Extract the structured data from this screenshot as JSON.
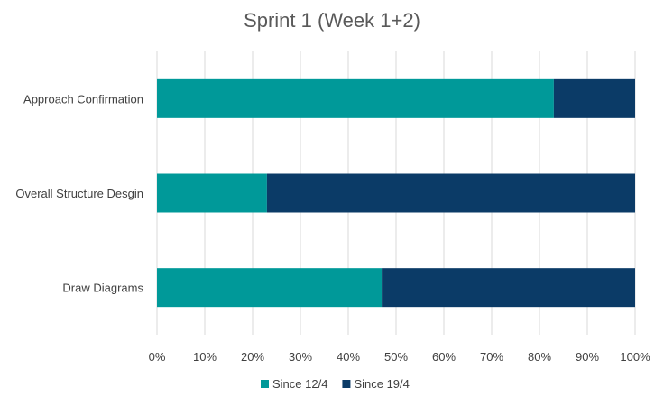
{
  "chart_data": {
    "type": "bar",
    "orientation": "horizontal",
    "stacked": "100%",
    "title": "Sprint 1 (Week 1+2)",
    "categories": [
      "Approach Confirmation",
      "Overall Structure Desgin",
      "Draw Diagrams"
    ],
    "series": [
      {
        "name": "Since 12/4",
        "color": "#009999",
        "values": [
          83,
          23,
          47
        ]
      },
      {
        "name": "Since 19/4",
        "color": "#0B3B67",
        "values": [
          17,
          77,
          53
        ]
      }
    ],
    "xlim": [
      0,
      100
    ],
    "xticks": [
      "0%",
      "10%",
      "20%",
      "30%",
      "40%",
      "50%",
      "60%",
      "70%",
      "80%",
      "90%",
      "100%"
    ],
    "grid": "vertical",
    "legend": "bottom"
  }
}
